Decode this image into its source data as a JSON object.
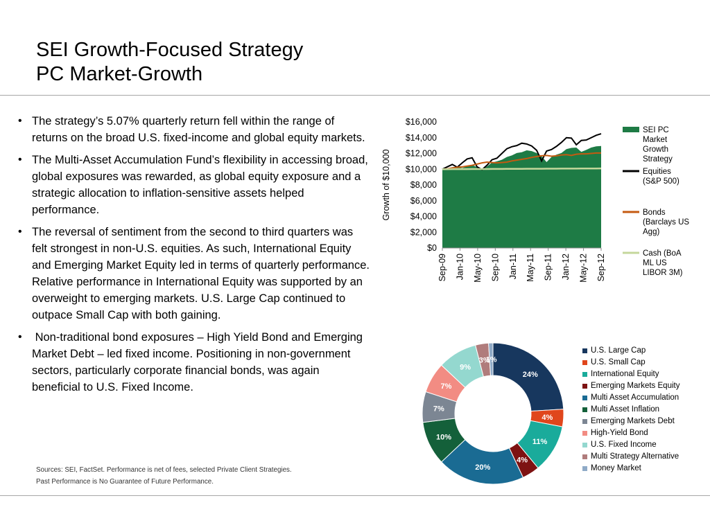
{
  "title": {
    "line1": "SEI Growth-Focused Strategy",
    "line2": "PC Market-Growth"
  },
  "bullets": [
    "The strategy’s 5.07% quarterly return fell within the range of returns on the broad U.S. fixed-income and global equity markets.",
    "The Multi-Asset Accumulation Fund’s flexibility in accessing broad, global exposures was rewarded, as global equity exposure and a strategic allocation to inflation-sensitive assets helped performance.",
    "The reversal of sentiment from the second to third quarters was felt strongest in non-U.S. equities. As such, International Equity and Emerging Market Equity led in terms of quarterly performance. Relative performance in International Equity was supported by an overweight to emerging markets. U.S. Large Cap continued to outpace Small Cap with both gaining.",
    " Non-traditional bond exposures – High Yield Bond and Emerging Market Debt – led fixed income. Positioning in non-government sectors, particularly corporate financial bonds, was again beneficial to U.S. Fixed Income."
  ],
  "bullet_symbol": "•",
  "sources": {
    "line1": "Sources: SEI, FactSet. Performance is net of fees, selected Private Client Strategies.",
    "line2": "Past Performance is No Guarantee of Future Performance."
  },
  "chart_data": [
    {
      "type": "line",
      "ylabel": "Growth of $10,000",
      "ylim": [
        0,
        16000
      ],
      "y_ticks": [
        "$0",
        "$2,000",
        "$4,000",
        "$6,000",
        "$8,000",
        "$10,000",
        "$12,000",
        "$14,000",
        "$16,000"
      ],
      "x_ticks": [
        "Sep-09",
        "Jan-10",
        "May-10",
        "Sep-10",
        "Jan-11",
        "May-11",
        "Sep-11",
        "Jan-12",
        "May-12",
        "Sep-12"
      ],
      "legend_position": "right",
      "series": [
        {
          "name": "SEI PC Market Growth Strategy",
          "style": "area",
          "color": "#1e7b45",
          "values": [
            10000,
            10050,
            10250,
            10300,
            10150,
            10350,
            10550,
            10250,
            9950,
            10350,
            10850,
            11000,
            11200,
            11550,
            11750,
            12050,
            12150,
            12400,
            12300,
            12050,
            11650,
            10900,
            11550,
            11850,
            12050,
            12550,
            12700,
            12750,
            12200,
            12450,
            12750,
            12900,
            12950
          ]
        },
        {
          "name": "Equities (S&P 500)",
          "style": "line",
          "color": "#000000",
          "values": [
            10000,
            10300,
            10600,
            10250,
            10800,
            11300,
            11450,
            10300,
            9950,
            10500,
            11200,
            11400,
            12000,
            12600,
            12850,
            13000,
            13300,
            13200,
            12950,
            12400,
            11050,
            12300,
            12500,
            12900,
            13400,
            14000,
            13950,
            13100,
            13650,
            13700,
            14000,
            14300,
            14500
          ]
        },
        {
          "name": "Bonds (Barclays US Agg)",
          "style": "line",
          "color": "#c55a11",
          "values": [
            10000,
            10050,
            10150,
            10250,
            10300,
            10400,
            10500,
            10650,
            10800,
            10900,
            10850,
            10800,
            10850,
            10900,
            11050,
            11150,
            11250,
            11350,
            11500,
            11600,
            11700,
            11750,
            11650,
            11700,
            11800,
            11850,
            11750,
            11900,
            11950,
            11950,
            12000,
            12050,
            12050
          ]
        },
        {
          "name": "Cash (BoA ML US LIBOR 3M)",
          "style": "line",
          "color": "#c4d79b",
          "values": [
            10000,
            10003,
            10006,
            10009,
            10012,
            10015,
            10018,
            10021,
            10024,
            10027,
            10030,
            10033,
            10036,
            10039,
            10042,
            10045,
            10048,
            10051,
            10054,
            10057,
            10060,
            10063,
            10066,
            10069,
            10072,
            10075,
            10078,
            10081,
            10084,
            10087,
            10090,
            10093,
            10096
          ]
        }
      ]
    },
    {
      "type": "pie",
      "donut": true,
      "legend_position": "right",
      "categories": [
        "U.S. Large Cap",
        "U.S. Small Cap",
        "International Equity",
        "Emerging Markets Equity",
        "Multi Asset Accumulation",
        "Multi Asset Inflation",
        "Emerging Markets Debt",
        "High-Yield Bond",
        "U.S. Fixed Income",
        "Multi Strategy Alternative",
        "Money Market"
      ],
      "values": [
        24,
        4,
        11,
        4,
        20,
        10,
        7,
        7,
        9,
        3,
        1
      ],
      "labels": [
        "24%",
        "4%",
        "11%",
        "4%",
        "20%",
        "10%",
        "7%",
        "7%",
        "9%",
        "3%",
        "1%"
      ],
      "colors": [
        "#17375e",
        "#e0461c",
        "#1aab9b",
        "#7d1212",
        "#1a6b93",
        "#14603a",
        "#7c8693",
        "#f28c83",
        "#94d8cf",
        "#b07c7c",
        "#8faac7"
      ]
    }
  ]
}
